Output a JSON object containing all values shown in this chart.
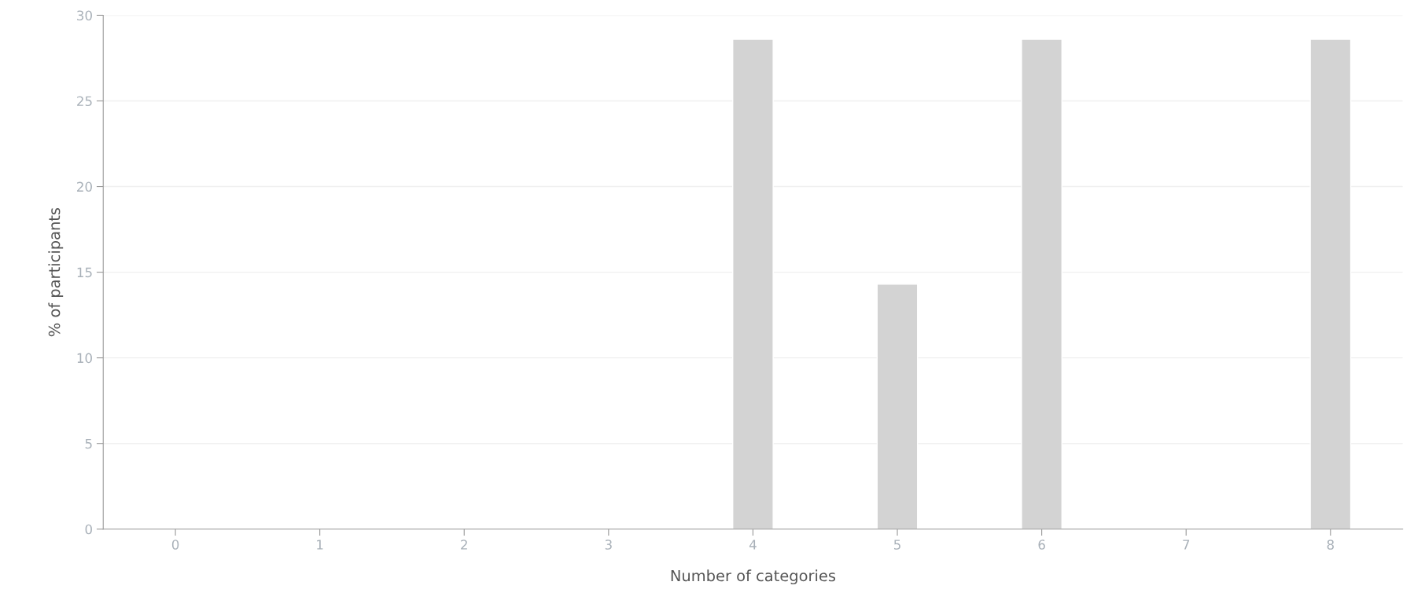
{
  "chart_data": {
    "type": "bar",
    "xlabel": "Number of categories",
    "ylabel": "% of participants",
    "categories": [
      "0",
      "1",
      "2",
      "3",
      "4",
      "5",
      "6",
      "7",
      "8"
    ],
    "values": [
      null,
      null,
      null,
      null,
      28.6,
      14.3,
      28.6,
      null,
      28.6
    ],
    "color": "#d3d3d3",
    "ylim": [
      0,
      30
    ],
    "yticks": [
      0,
      5,
      10,
      15,
      20,
      25,
      30
    ],
    "grid": "y"
  }
}
